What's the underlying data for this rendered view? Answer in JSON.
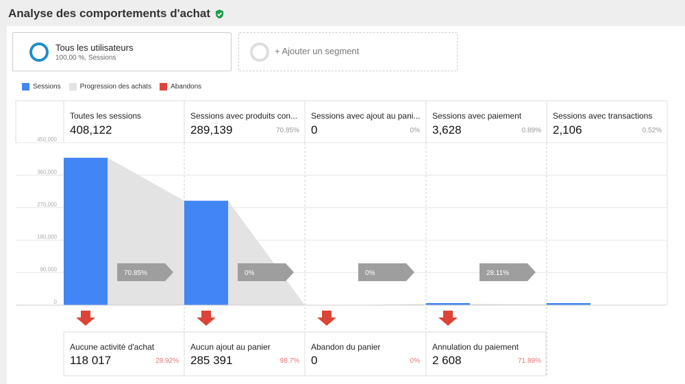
{
  "page": {
    "title": "Analyse des comportements d'achat",
    "verified_icon": "shield-check-icon",
    "verified_color": "#1e9e4a"
  },
  "segments": [
    {
      "name": "Tous les utilisateurs",
      "subtitle": "100,00 %, Sessions",
      "color": "#1f8dc9"
    },
    {
      "add_label": "+ Ajouter un segment"
    }
  ],
  "legend": [
    {
      "label": "Sessions",
      "color": "#4285f4"
    },
    {
      "label": "Progression des achats",
      "color": "#e3e3e3"
    },
    {
      "label": "Abandons",
      "color": "#db4437"
    }
  ],
  "stages": [
    {
      "name": "Toutes les sessions",
      "value": "408,122",
      "pct": ""
    },
    {
      "name": "Sessions avec produits con...",
      "value": "289,139",
      "pct": "70.85%"
    },
    {
      "name": "Sessions avec ajout au pani...",
      "value": "0",
      "pct": "0%"
    },
    {
      "name": "Sessions avec paiement",
      "value": "3,628",
      "pct": "0.89%"
    },
    {
      "name": "Sessions avec transactions",
      "value": "2,106",
      "pct": "0.52%"
    }
  ],
  "arrows": [
    "70.85%",
    "0%",
    "0%",
    "28.11%"
  ],
  "abandons": [
    {
      "name": "Aucune activité d'achat",
      "value": "118 017",
      "pct": "28.92%"
    },
    {
      "name": "Aucun ajout au panier",
      "value": "285 391",
      "pct": "98.7%"
    },
    {
      "name": "Abandon du panier",
      "value": "0",
      "pct": "0%"
    },
    {
      "name": "Annulation du paiement",
      "value": "2 608",
      "pct": "71.89%"
    }
  ],
  "chart_data": {
    "type": "bar",
    "categories": [
      "Toutes les sessions",
      "Sessions avec produits con...",
      "Sessions avec ajout au pani...",
      "Sessions avec paiement",
      "Sessions avec transactions"
    ],
    "values": [
      408122,
      289139,
      0,
      3628,
      2106
    ],
    "y_ticks": [
      "450,000",
      "360,000",
      "270,000",
      "180,000",
      "90,000",
      "0"
    ],
    "ylim": [
      0,
      450000
    ],
    "colors": {
      "bar": "#4285f4",
      "progress": "#e3e3e3",
      "abandon": "#db4437",
      "arrow": "#9e9e9e"
    }
  }
}
